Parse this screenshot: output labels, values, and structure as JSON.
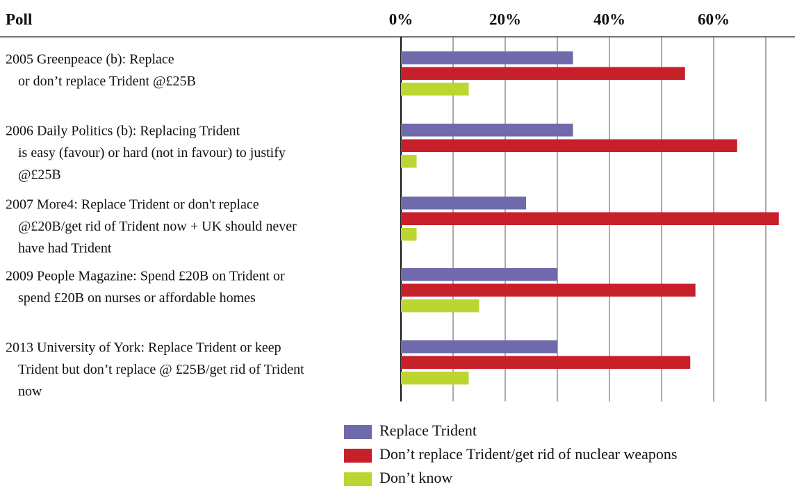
{
  "chart_data": {
    "type": "hbar",
    "header": "Poll",
    "categories": [
      [
        "2005 Greenpeace (b): Replace",
        "or don’t replace Trident @£25B"
      ],
      [
        "2006 Daily Politics (b): Replacing Trident",
        "is easy (favour) or hard (not in favour) to justify",
        "@£25B"
      ],
      [
        "2007 More4: Replace Trident or don't replace",
        "@£20B/get rid of Trident now + UK should never",
        "have had Trident"
      ],
      [
        "2009 People Magazine: Spend £20B on Trident or",
        "spend £20B on nurses or affordable homes"
      ],
      [
        "2013 University of York: Replace Trident or keep",
        "Trident but don’t replace @ £25B/get rid of Trident",
        "now"
      ]
    ],
    "series": [
      {
        "name": "Replace Trident",
        "color": "#6f6aab",
        "values": [
          33,
          33,
          24,
          30,
          30
        ]
      },
      {
        "name": "Don’t replace Trident/get rid of nuclear weapons",
        "color": "#c8202b",
        "values": [
          54.5,
          64.5,
          72.5,
          56.5,
          55.5
        ]
      },
      {
        "name": "Don’t know",
        "color": "#bcd531",
        "values": [
          13,
          3,
          3,
          15,
          13
        ]
      }
    ],
    "xlim": [
      0,
      75
    ],
    "xticks": [
      {
        "value": 0,
        "label": "0%"
      },
      {
        "value": 20,
        "label": "20%"
      },
      {
        "value": 40,
        "label": "40%"
      },
      {
        "value": 60,
        "label": "60%"
      }
    ],
    "xminor": [
      10,
      30,
      50,
      70
    ],
    "grid": true
  }
}
